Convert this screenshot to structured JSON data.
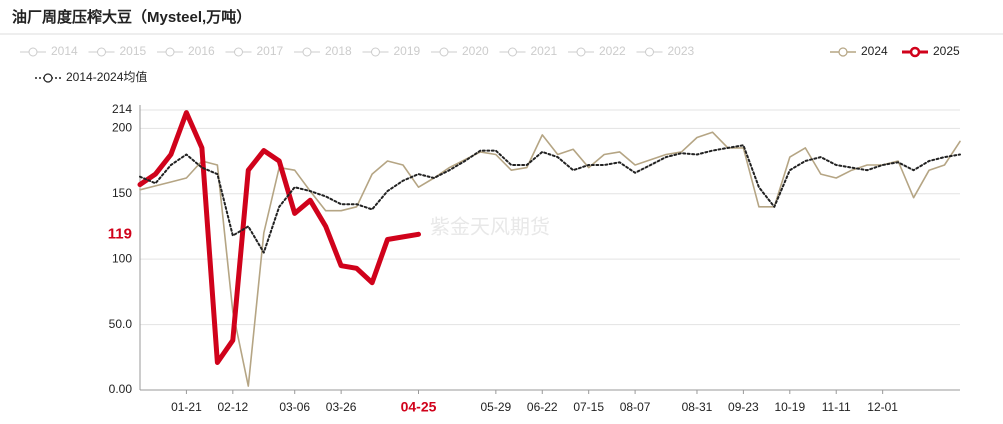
{
  "chart_data": {
    "type": "line",
    "title": "油厂周度压榨大豆（Mysteel,万吨）",
    "watermark": "紫金天风期货",
    "inactive_legend": [
      "2014",
      "2015",
      "2016",
      "2017",
      "2018",
      "2019",
      "2020",
      "2021",
      "2022",
      "2023"
    ],
    "categories": [
      null,
      null,
      null,
      "01-21",
      null,
      null,
      "02-12",
      null,
      null,
      null,
      "03-06",
      null,
      null,
      "03-26",
      null,
      null,
      null,
      null,
      "04-25",
      null,
      null,
      null,
      null,
      "05-29",
      null,
      null,
      "06-22",
      null,
      null,
      "07-15",
      null,
      null,
      "08-07",
      null,
      null,
      null,
      "08-31",
      null,
      null,
      "09-23",
      null,
      null,
      "10-19",
      null,
      null,
      "11-11",
      null,
      null,
      "12-01",
      null,
      null,
      null,
      null,
      null
    ],
    "highlight_index": 18,
    "series": [
      {
        "name": "2024",
        "color": "#b5a584",
        "style": "solid",
        "values": [
          153,
          156,
          159,
          162,
          175,
          172,
          60,
          3,
          120,
          170,
          168,
          152,
          137,
          137,
          140,
          165,
          175,
          172,
          155,
          162,
          170,
          176,
          182,
          180,
          168,
          170,
          195,
          180,
          184,
          170,
          180,
          182,
          172,
          176,
          180,
          182,
          193,
          197,
          185,
          185,
          140,
          140,
          178,
          185,
          165,
          162,
          168,
          172,
          172,
          175,
          147,
          168,
          172,
          190
        ]
      },
      {
        "name": "2025",
        "color": "#d0021b",
        "style": "bold",
        "values": [
          157,
          165,
          180,
          212,
          185,
          21,
          38,
          168,
          183,
          175,
          135,
          145,
          125,
          95,
          93,
          82,
          115,
          117,
          119,
          null,
          null,
          null,
          null,
          null,
          null,
          null,
          null,
          null,
          null,
          null,
          null,
          null,
          null,
          null,
          null,
          null,
          null,
          null,
          null,
          null,
          null,
          null,
          null,
          null,
          null,
          null,
          null,
          null,
          null,
          null,
          null,
          null,
          null,
          null
        ]
      },
      {
        "name": "2014-2024均值",
        "color": "#222222",
        "style": "dotted",
        "values": [
          163,
          158,
          172,
          180,
          170,
          165,
          118,
          125,
          105,
          140,
          155,
          152,
          148,
          142,
          142,
          138,
          152,
          160,
          165,
          162,
          168,
          175,
          183,
          183,
          172,
          172,
          182,
          178,
          168,
          172,
          172,
          174,
          166,
          172,
          178,
          181,
          180,
          183,
          185,
          187,
          155,
          140,
          168,
          175,
          178,
          172,
          170,
          168,
          172,
          174,
          168,
          175,
          178,
          180
        ]
      }
    ],
    "ylim": [
      0,
      214
    ],
    "yticks": [
      {
        "value": 0,
        "label": "0.00"
      },
      {
        "value": 50,
        "label": "50.0"
      },
      100,
      150,
      200,
      214
    ],
    "grid": true
  }
}
